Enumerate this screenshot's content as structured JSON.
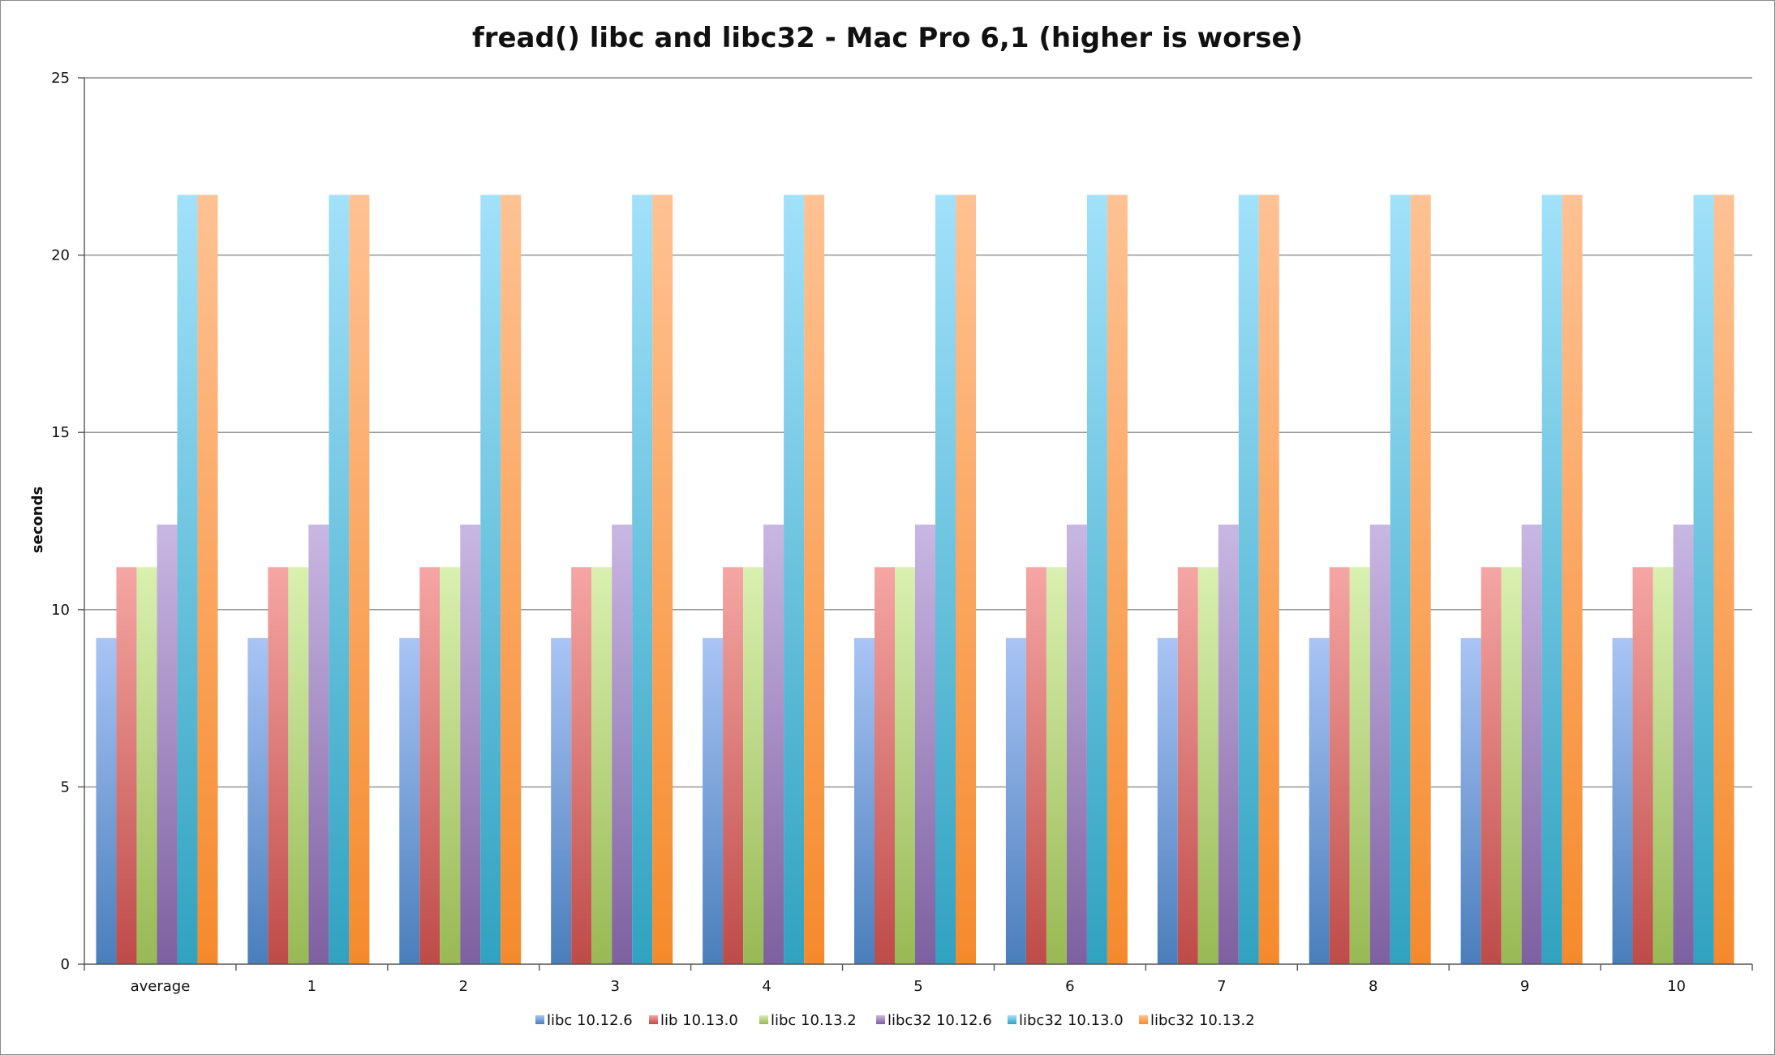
{
  "chart_data": {
    "type": "bar",
    "title": "fread() libc and libc32 - Mac Pro 6,1 (higher is worse)",
    "xlabel": "",
    "ylabel": "seconds",
    "ylim": [
      0,
      25
    ],
    "yticks": [
      0,
      5,
      10,
      15,
      20,
      25
    ],
    "grid": true,
    "legend_position": "bottom",
    "categories": [
      "average",
      "1",
      "2",
      "3",
      "4",
      "5",
      "6",
      "7",
      "8",
      "9",
      "10"
    ],
    "series": [
      {
        "name": "libc 10.12.6",
        "color": "#4a7ebb",
        "light": "#a9c4f5",
        "values": [
          9.2,
          9.2,
          9.2,
          9.2,
          9.2,
          9.2,
          9.2,
          9.2,
          9.2,
          9.2,
          9.2
        ]
      },
      {
        "name": "lib 10.13.0",
        "color": "#be4b48",
        "light": "#f5a6a4",
        "values": [
          11.2,
          11.2,
          11.2,
          11.2,
          11.2,
          11.2,
          11.2,
          11.2,
          11.2,
          11.2,
          11.2
        ]
      },
      {
        "name": "libc 10.13.2",
        "color": "#98b954",
        "light": "#d9f0b0",
        "values": [
          11.2,
          11.2,
          11.2,
          11.2,
          11.2,
          11.2,
          11.2,
          11.2,
          11.2,
          11.2,
          11.2
        ]
      },
      {
        "name": "libc32 10.12.6",
        "color": "#7d60a0",
        "light": "#c9b7e3",
        "values": [
          12.4,
          12.4,
          12.4,
          12.4,
          12.4,
          12.4,
          12.4,
          12.4,
          12.4,
          12.4,
          12.4
        ]
      },
      {
        "name": "libc32 10.13.0",
        "color": "#30a2c0",
        "light": "#a2e1fa",
        "values": [
          21.7,
          21.7,
          21.7,
          21.7,
          21.7,
          21.7,
          21.7,
          21.7,
          21.7,
          21.7,
          21.7
        ]
      },
      {
        "name": "libc32 10.13.2",
        "color": "#f58a2c",
        "light": "#ffc294",
        "values": [
          21.7,
          21.7,
          21.7,
          21.7,
          21.7,
          21.7,
          21.7,
          21.7,
          21.7,
          21.7,
          21.7
        ]
      }
    ]
  }
}
